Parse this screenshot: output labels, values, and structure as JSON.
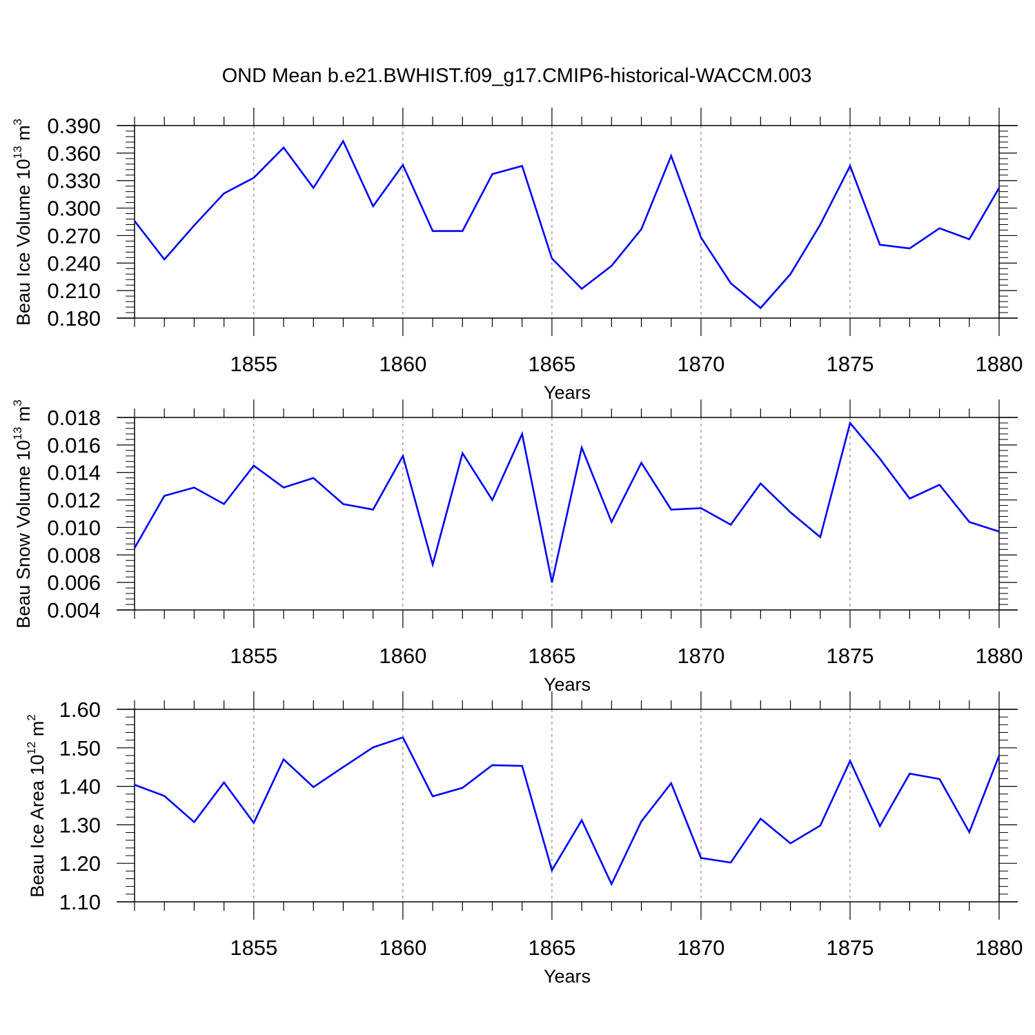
{
  "title": "OND Mean b.e21.BWHIST.f09_g17.CMIP6-historical-WACCM.003",
  "colors": {
    "series": "#0000ff",
    "axis": "#000000",
    "grid": "#888888"
  },
  "chart_data": [
    {
      "type": "line",
      "ylabel": {
        "main": "Beau Ice Volume 10",
        "exponent": "13",
        "units": " m",
        "unit_exp": "3"
      },
      "xlabel": "Years",
      "xlim": [
        1851,
        1880
      ],
      "ylim": [
        0.18,
        0.39
      ],
      "x_ticks": [
        "1855",
        "1860",
        "1865",
        "1870",
        "1875",
        "1880"
      ],
      "y_ticks": [
        "0.390",
        "0.360",
        "0.330",
        "0.300",
        "0.270",
        "0.240",
        "0.210",
        "0.180"
      ],
      "x": [
        1851,
        1852,
        1853,
        1854,
        1855,
        1856,
        1857,
        1858,
        1859,
        1860,
        1861,
        1862,
        1863,
        1864,
        1865,
        1866,
        1867,
        1868,
        1869,
        1870,
        1871,
        1872,
        1873,
        1874,
        1875,
        1876,
        1877,
        1878,
        1879,
        1880
      ],
      "values": [
        0.286,
        0.244,
        0.281,
        0.316,
        0.333,
        0.366,
        0.322,
        0.373,
        0.302,
        0.347,
        0.275,
        0.275,
        0.337,
        0.346,
        0.245,
        0.212,
        0.237,
        0.277,
        0.357,
        0.268,
        0.218,
        0.191,
        0.228,
        0.282,
        0.346,
        0.26,
        0.256,
        0.278,
        0.266,
        0.322
      ]
    },
    {
      "type": "line",
      "ylabel": {
        "main": "Beau Snow Volume 10",
        "exponent": "13",
        "units": " m",
        "unit_exp": "3"
      },
      "xlabel": "Years",
      "xlim": [
        1851,
        1880
      ],
      "ylim": [
        0.004,
        0.018
      ],
      "x_ticks": [
        "1855",
        "1860",
        "1865",
        "1870",
        "1875",
        "1880"
      ],
      "y_ticks": [
        "0.018",
        "0.016",
        "0.014",
        "0.012",
        "0.010",
        "0.008",
        "0.006",
        "0.004"
      ],
      "x": [
        1851,
        1852,
        1853,
        1854,
        1855,
        1856,
        1857,
        1858,
        1859,
        1860,
        1861,
        1862,
        1863,
        1864,
        1865,
        1866,
        1867,
        1868,
        1869,
        1870,
        1871,
        1872,
        1873,
        1874,
        1875,
        1876,
        1877,
        1878,
        1879,
        1880
      ],
      "values": [
        0.0085,
        0.0123,
        0.0129,
        0.0117,
        0.0145,
        0.0129,
        0.0136,
        0.0117,
        0.0113,
        0.0152,
        0.0073,
        0.0154,
        0.012,
        0.0168,
        0.006,
        0.0158,
        0.0104,
        0.0147,
        0.0113,
        0.0114,
        0.0102,
        0.0132,
        0.0111,
        0.0093,
        0.0176,
        0.015,
        0.0121,
        0.0131,
        0.0104,
        0.0097
      ]
    },
    {
      "type": "line",
      "ylabel": {
        "main": "Beau Ice Area 10",
        "exponent": "12",
        "units": " m",
        "unit_exp": "2"
      },
      "xlabel": "Years",
      "xlim": [
        1851,
        1880
      ],
      "ylim": [
        1.1,
        1.6
      ],
      "x_ticks": [
        "1855",
        "1860",
        "1865",
        "1870",
        "1875",
        "1880"
      ],
      "y_ticks": [
        "1.60",
        "1.50",
        "1.40",
        "1.30",
        "1.20",
        "1.10"
      ],
      "x": [
        1851,
        1852,
        1853,
        1854,
        1855,
        1856,
        1857,
        1858,
        1859,
        1860,
        1861,
        1862,
        1863,
        1864,
        1865,
        1866,
        1867,
        1868,
        1869,
        1870,
        1871,
        1872,
        1873,
        1874,
        1875,
        1876,
        1877,
        1878,
        1879,
        1880
      ],
      "values": [
        1.404,
        1.375,
        1.307,
        1.41,
        1.305,
        1.47,
        1.398,
        1.45,
        1.501,
        1.527,
        1.374,
        1.396,
        1.455,
        1.453,
        1.182,
        1.312,
        1.146,
        1.309,
        1.408,
        1.214,
        1.202,
        1.316,
        1.252,
        1.298,
        1.466,
        1.297,
        1.433,
        1.419,
        1.281,
        1.48
      ]
    }
  ]
}
